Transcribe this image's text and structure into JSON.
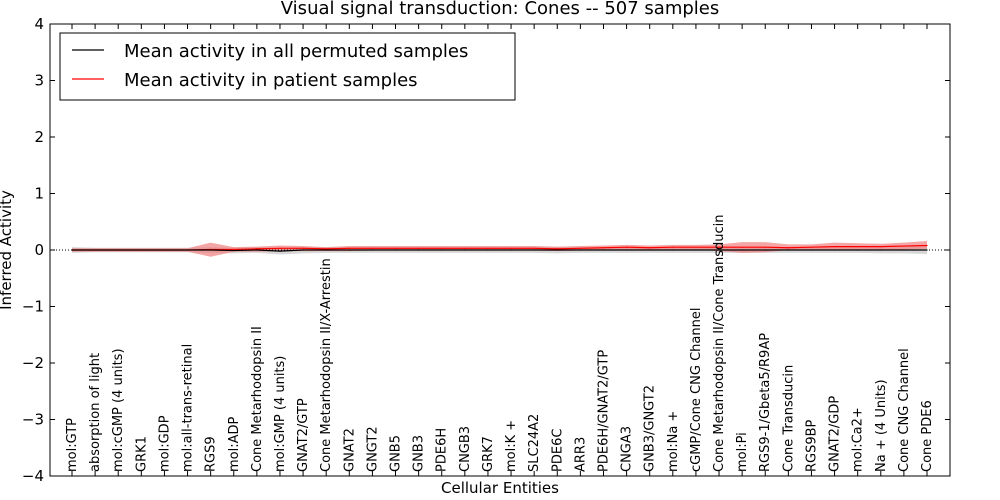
{
  "chart_data": {
    "type": "line",
    "title": "Visual signal transduction: Cones -- 507 samples",
    "xlabel": "Cellular Entities",
    "ylabel": "Inferred Activity",
    "ylim": [
      -4,
      4
    ],
    "yticks": [
      "4",
      "3",
      "2",
      "1",
      "0",
      "−1",
      "−2",
      "−3",
      "−4"
    ],
    "grid": false,
    "legend_position": "top-left",
    "categories": [
      "mol:GTP",
      "absorption of light",
      "mol:cGMP (4 units)",
      "GRK1",
      "mol:GDP",
      "mol:all-trans-retinal",
      "RGS9",
      "mol:ADP",
      "Cone Metarhodopsin II",
      "mol:GMP (4 units)",
      "GNAT2/GTP",
      "Cone Metarhodopsin II/X-Arrestin",
      "GNAT2",
      "GNGT2",
      "GNB5",
      "GNB3",
      "PDE6H",
      "CNGB3",
      "GRK7",
      "mol:K +",
      "SLC24A2",
      "PDE6C",
      "ARR3",
      "PDE6H/GNAT2/GTP",
      "CNGA3",
      "GNB3/GNGT2",
      "mol:Na +",
      "cGMP/Cone CNG Channel",
      "Cone Metarhodopsin II/Cone Transducin",
      "mol:Pi",
      "RGS9-1/Gbeta5/R9AP",
      "Cone Transducin",
      "RGS9BP",
      "GNAT2/GDP",
      "mol:Ca2+",
      "Na + (4 Units)",
      "Cone CNG Channel",
      "Cone PDE6"
    ],
    "series": [
      {
        "name": "Mean activity in all permuted samples",
        "color": "#000000",
        "values": [
          0,
          0,
          0,
          0,
          0,
          0,
          0,
          -0.01,
          0,
          -0.02,
          0,
          0,
          0,
          0,
          0,
          0,
          0,
          0,
          0,
          0,
          0,
          0,
          0,
          0,
          0,
          0,
          0,
          0,
          0,
          0,
          0,
          0,
          0,
          0,
          0,
          0,
          0,
          0
        ],
        "band_lower": [
          -0.05,
          -0.04,
          -0.04,
          -0.04,
          -0.04,
          -0.04,
          -0.05,
          -0.06,
          -0.05,
          -0.08,
          -0.06,
          -0.05,
          -0.05,
          -0.05,
          -0.05,
          -0.05,
          -0.05,
          -0.05,
          -0.05,
          -0.05,
          -0.05,
          -0.06,
          -0.05,
          -0.05,
          -0.05,
          -0.05,
          -0.05,
          -0.05,
          -0.05,
          -0.05,
          -0.05,
          -0.05,
          -0.05,
          -0.05,
          -0.05,
          -0.06,
          -0.06,
          -0.07
        ],
        "band_upper": [
          0.05,
          0.04,
          0.04,
          0.04,
          0.04,
          0.04,
          0.05,
          0.04,
          0.05,
          0.04,
          0.05,
          0.05,
          0.05,
          0.05,
          0.05,
          0.05,
          0.05,
          0.05,
          0.05,
          0.05,
          0.05,
          0.05,
          0.05,
          0.05,
          0.05,
          0.05,
          0.05,
          0.05,
          0.05,
          0.05,
          0.05,
          0.05,
          0.05,
          0.05,
          0.05,
          0.06,
          0.06,
          0.07
        ]
      },
      {
        "name": "Mean activity in patient samples",
        "color": "#ff0000",
        "band_color": "#f08080",
        "values": [
          0,
          0,
          0,
          0,
          0,
          0,
          0.01,
          0.01,
          0.02,
          0.03,
          0.03,
          0.02,
          0.03,
          0.03,
          0.03,
          0.03,
          0.03,
          0.03,
          0.03,
          0.03,
          0.03,
          0.02,
          0.03,
          0.04,
          0.05,
          0.04,
          0.05,
          0.05,
          0.05,
          0.05,
          0.05,
          0.04,
          0.05,
          0.06,
          0.06,
          0.06,
          0.07,
          0.08
        ],
        "band_lower": [
          -0.03,
          -0.03,
          -0.03,
          -0.03,
          -0.03,
          -0.03,
          -0.12,
          -0.03,
          -0.03,
          -0.02,
          -0.02,
          -0.02,
          -0.02,
          -0.01,
          -0.01,
          -0.01,
          -0.01,
          -0.01,
          -0.01,
          -0.01,
          -0.01,
          -0.02,
          -0.01,
          0,
          0,
          0,
          0,
          0,
          -0.02,
          -0.05,
          -0.04,
          0,
          0,
          0,
          0,
          0.01,
          0.01,
          0.02
        ],
        "band_upper": [
          0.03,
          0.03,
          0.03,
          0.03,
          0.03,
          0.03,
          0.13,
          0.05,
          0.06,
          0.08,
          0.07,
          0.05,
          0.07,
          0.07,
          0.07,
          0.07,
          0.07,
          0.07,
          0.07,
          0.07,
          0.07,
          0.06,
          0.07,
          0.08,
          0.09,
          0.08,
          0.09,
          0.09,
          0.1,
          0.14,
          0.14,
          0.1,
          0.1,
          0.13,
          0.12,
          0.11,
          0.13,
          0.16
        ]
      }
    ]
  }
}
